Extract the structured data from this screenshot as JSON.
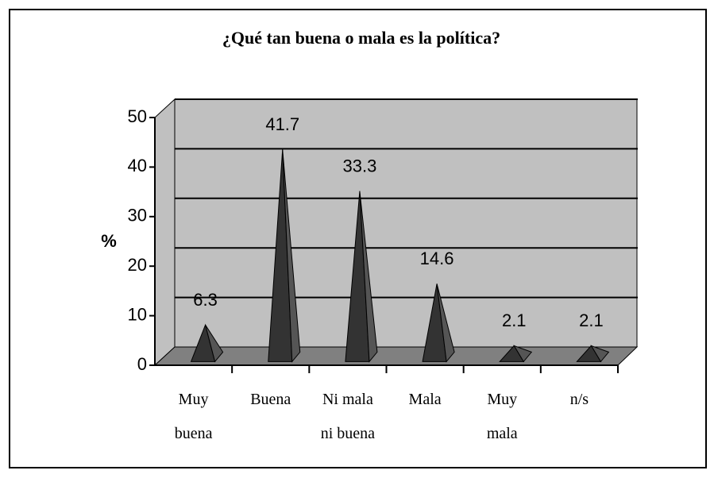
{
  "chart_data": {
    "type": "bar3d-pyramid",
    "title": "¿Qué tan buena o mala es la política?",
    "y_label": "%",
    "categories": [
      "Muy buena",
      "Buena",
      "Ni mala ni buena",
      "Mala",
      "Muy mala",
      "n/s"
    ],
    "values": [
      6.3,
      41.7,
      33.3,
      14.6,
      2.1,
      2.1
    ],
    "color": "#333333",
    "ylim": [
      0,
      50
    ],
    "yticks": [
      0,
      10,
      20,
      30,
      40,
      50
    ],
    "grid": true
  }
}
